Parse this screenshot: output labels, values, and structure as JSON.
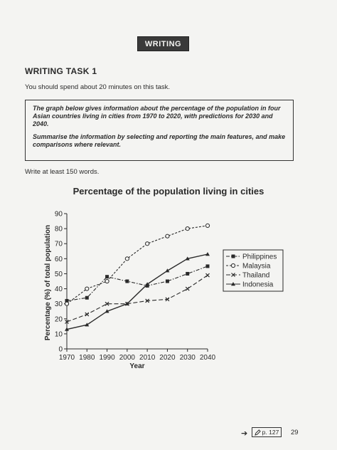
{
  "banner": "WRITING",
  "task_title": "WRITING TASK 1",
  "instruction": "You should spend about 20 minutes on this task.",
  "task_box": {
    "paragraph1": "The graph below gives information about the percentage of the population in four Asian countries living in cities from 1970 to 2020, with predictions for 2030 and 2040.",
    "paragraph2": "Summarise the information by selecting and reporting the main features, and make comparisons where relevant."
  },
  "word_count": "Write at least 150 words.",
  "footer": {
    "arrow": "➔",
    "pencil_icon": "pencil-icon",
    "page_ref": "p. 127",
    "page_number": "29"
  },
  "chart_data": {
    "type": "line",
    "title": "Percentage of the population living in cities",
    "xlabel": "Year",
    "ylabel": "Percentage (%) of total population",
    "x": [
      1970,
      1980,
      1990,
      2000,
      2010,
      2020,
      2030,
      2040
    ],
    "xlim": [
      1970,
      2040
    ],
    "ylim": [
      0,
      90
    ],
    "yticks": [
      0,
      10,
      20,
      30,
      40,
      50,
      60,
      70,
      80,
      90
    ],
    "grid": false,
    "legend_position": "right",
    "series": [
      {
        "name": "Philippines",
        "marker": "square",
        "dash": "dash-dot",
        "values": [
          32,
          34,
          48,
          45,
          42,
          45,
          50,
          55
        ]
      },
      {
        "name": "Malaysia",
        "marker": "circle-open",
        "dash": "dash",
        "values": [
          30,
          40,
          45,
          60,
          70,
          75,
          80,
          82
        ]
      },
      {
        "name": "Thailand",
        "marker": "x",
        "dash": "long-dash",
        "values": [
          18,
          23,
          30,
          30,
          32,
          33,
          40,
          49
        ]
      },
      {
        "name": "Indonesia",
        "marker": "triangle",
        "dash": "solid",
        "values": [
          13,
          16,
          25,
          30,
          43,
          52,
          60,
          63
        ]
      }
    ]
  }
}
